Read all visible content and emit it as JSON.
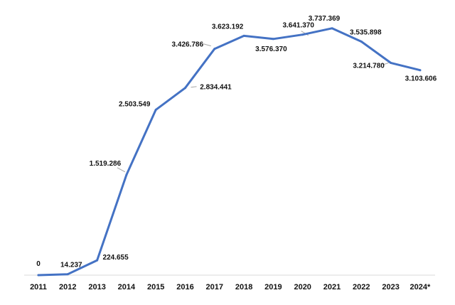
{
  "chart_data": {
    "type": "line",
    "categories": [
      "2011",
      "2012",
      "2013",
      "2014",
      "2015",
      "2016",
      "2017",
      "2018",
      "2019",
      "2020",
      "2021",
      "2022",
      "2023",
      "2024*"
    ],
    "series": [
      {
        "values": [
          0,
          14237,
          224655,
          1519286,
          2503549,
          2834441,
          3426786,
          3623192,
          3576370,
          3641370,
          3737369,
          3535898,
          3214780,
          3103606
        ],
        "labels": [
          "0",
          "14.237",
          "224.655",
          "1.519.286",
          "2.503.549",
          "2.834.441",
          "3.426.786",
          "3.623.192",
          "3.576.370",
          "3.641.370",
          "3.737.369",
          "3.535.898",
          "3.214.780",
          "3.103.606"
        ],
        "color": "#4472c4"
      }
    ],
    "title": "",
    "xlabel": "",
    "ylabel": "",
    "ylim": [
      0,
      3800000
    ],
    "grid": false,
    "legend": "none"
  }
}
